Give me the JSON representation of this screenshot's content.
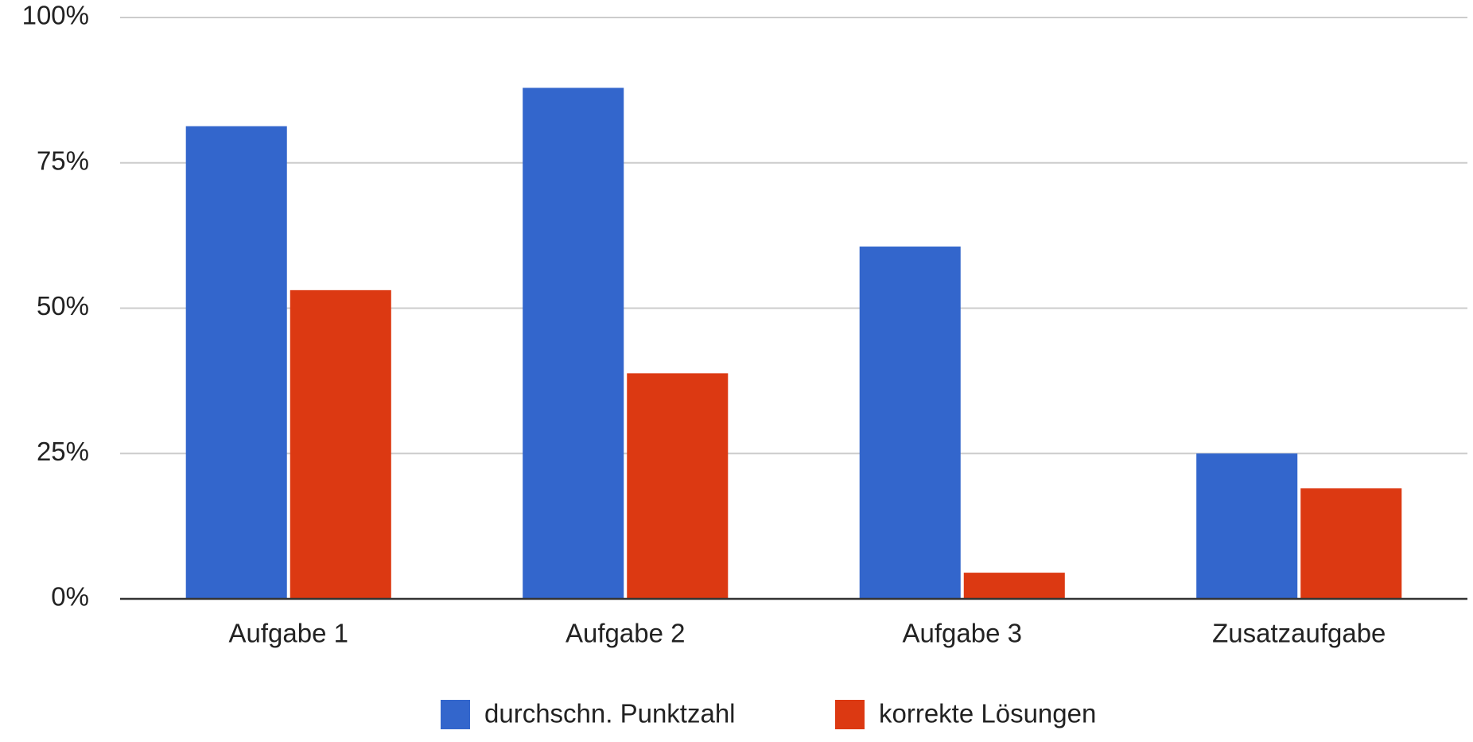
{
  "chart_data": {
    "type": "bar",
    "categories": [
      "Aufgabe 1",
      "Aufgabe 2",
      "Aufgabe 3",
      "Zusatzaufgabe"
    ],
    "series": [
      {
        "name": "durchschn. Punktzahl",
        "color": "#3366cc",
        "values": [
          81.3,
          87.9,
          60.6,
          25.0
        ]
      },
      {
        "name": "korrekte Lösungen",
        "color": "#dc3912",
        "values": [
          53.1,
          38.8,
          4.5,
          19.0
        ]
      }
    ],
    "ylim": [
      0,
      100
    ],
    "yticks": [
      {
        "value": 0,
        "label": "0%"
      },
      {
        "value": 25,
        "label": "25%"
      },
      {
        "value": 50,
        "label": "50%"
      },
      {
        "value": 75,
        "label": "75%"
      },
      {
        "value": 100,
        "label": "100%"
      }
    ],
    "grid": true,
    "legend": "bottom"
  }
}
